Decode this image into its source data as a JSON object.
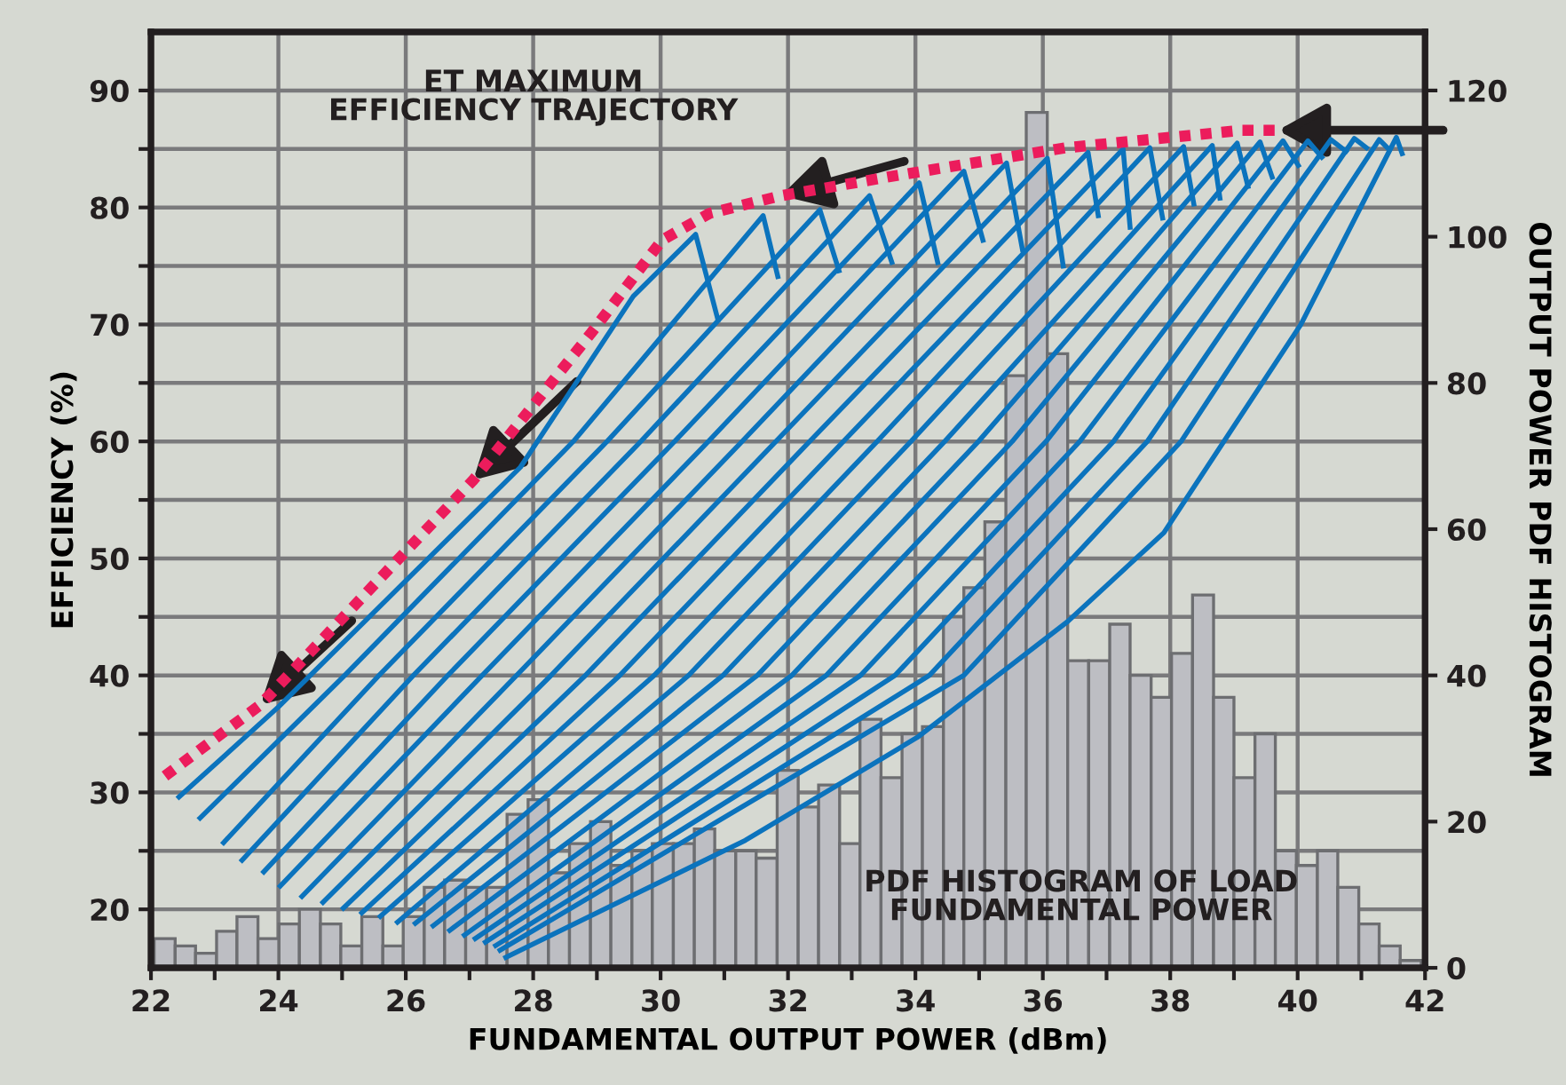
{
  "chart_data": {
    "type": "line",
    "xlabel": "FUNDAMENTAL OUTPUT POWER (dBm)",
    "ylabel": "EFFICIENCY (%)",
    "y2label": "OUTPUT POWER PDF HISTOGRAM",
    "xlim": [
      22,
      42
    ],
    "xticks": [
      22,
      {
        "value": 23,
        "label": null
      },
      24,
      {
        "value": 25,
        "label": null
      },
      26,
      {
        "value": 27,
        "label": null
      },
      28,
      {
        "value": 29,
        "label": null
      },
      30,
      {
        "value": 31,
        "label": null
      },
      32,
      {
        "value": 33,
        "label": null
      },
      34,
      {
        "value": 35,
        "label": null
      },
      36,
      {
        "value": 37,
        "label": null
      },
      38,
      {
        "value": 39,
        "label": null
      },
      40,
      {
        "value": 41,
        "label": null
      },
      42
    ],
    "ylim": [
      15,
      95
    ],
    "yticks": [
      20,
      {
        "value": 25,
        "label": null
      },
      30,
      {
        "value": 35,
        "label": null
      },
      40,
      {
        "value": 45,
        "label": null
      },
      50,
      {
        "value": 55,
        "label": null
      },
      60,
      {
        "value": 65,
        "label": null
      },
      70,
      {
        "value": 75,
        "label": null
      },
      80,
      {
        "value": 85,
        "label": null
      },
      90
    ],
    "y2lim": [
      0,
      128
    ],
    "y2ticks": [
      0,
      20,
      40,
      60,
      80,
      100,
      120
    ],
    "grid": true,
    "annotations": [
      "ET MAXIMUM\nEFFICIENCY TRAJECTORY",
      "PDF HISTOGRAM OF LOAD\nFUNDAMENTAL POWER"
    ],
    "series": [
      {
        "type": "histogram",
        "axis": "y2",
        "color": "#bdbec3",
        "bins": [
          22.05,
          22.38,
          22.7,
          23.03,
          23.35,
          23.68,
          24.01,
          24.33,
          24.66,
          24.98,
          25.31,
          25.64,
          25.96,
          26.29,
          26.61,
          26.94,
          27.27,
          27.59,
          27.92,
          28.24,
          28.57,
          28.9,
          29.22,
          29.55,
          29.87,
          30.2,
          30.53,
          30.85,
          31.18,
          31.5,
          31.83,
          32.16,
          32.48,
          32.81,
          33.13,
          33.46,
          33.79,
          34.11,
          34.44,
          34.76,
          35.09,
          35.42,
          35.74,
          36.07,
          36.39,
          36.72,
          37.05,
          37.37,
          37.7,
          38.02,
          38.35,
          38.68,
          39.0,
          39.33,
          39.65,
          39.98,
          40.31,
          40.63,
          40.96,
          41.28,
          41.61,
          41.94
        ],
        "values": [
          4,
          3,
          2,
          5,
          7,
          4,
          6,
          8,
          6,
          3,
          7,
          3,
          7,
          11,
          12,
          11,
          11,
          21,
          23,
          13,
          17,
          20,
          14,
          16,
          17,
          17,
          19,
          16,
          16,
          15,
          27,
          22,
          25,
          17,
          34,
          26,
          32,
          33,
          48,
          52,
          61,
          81,
          117,
          84,
          42,
          42,
          47,
          40,
          37,
          43,
          51,
          37,
          26,
          32,
          16,
          14,
          16,
          11,
          6,
          3,
          1
        ]
      },
      {
        "color": "#0b73bd",
        "x": [
          22.44,
          24.0,
          27.8,
          29.57,
          30.55,
          30.9
        ],
        "values": [
          29.6,
          37.3,
          57.8,
          72.4,
          77.7,
          70.4
        ]
      },
      {
        "color": "#0b73bd",
        "x": [
          22.77,
          25.04,
          28.63,
          31.61,
          31.84
        ],
        "values": [
          27.8,
          40,
          60,
          79.3,
          74.1
        ]
      },
      {
        "color": "#0b73bd",
        "x": [
          23.14,
          25.58,
          29.16,
          32.5,
          32.8
        ],
        "values": [
          25.7,
          40,
          60,
          79.8,
          74.6
        ]
      },
      {
        "color": "#0b73bd",
        "x": [
          23.43,
          26.12,
          29.69,
          33.28,
          33.63
        ],
        "values": [
          24.2,
          40,
          60,
          81.0,
          75.3
        ]
      },
      {
        "color": "#0b73bd",
        "x": [
          23.77,
          26.66,
          30.22,
          34.06,
          34.35
        ],
        "values": [
          23.2,
          40,
          60,
          82.1,
          75.3
        ]
      },
      {
        "color": "#0b73bd",
        "x": [
          24.03,
          27.2,
          30.75,
          34.76,
          35.06
        ],
        "values": [
          22.0,
          40,
          60,
          83.1,
          77.2
        ]
      },
      {
        "color": "#0b73bd",
        "x": [
          24.37,
          27.74,
          31.28,
          35.43,
          35.68
        ],
        "values": [
          21.1,
          40,
          60,
          83.8,
          76.4
        ]
      },
      {
        "color": "#0b73bd",
        "x": [
          24.7,
          28.28,
          31.81,
          36.07,
          36.32
        ],
        "values": [
          20.6,
          40,
          60,
          84.2,
          75.0
        ]
      },
      {
        "color": "#0b73bd",
        "x": [
          25.02,
          28.82,
          32.34,
          36.71,
          36.87
        ],
        "values": [
          20.1,
          40,
          60,
          84.7,
          79.3
        ]
      },
      {
        "color": "#0b73bd",
        "x": [
          25.31,
          29.36,
          32.87,
          37.26,
          37.37
        ],
        "values": [
          19.7,
          40,
          60,
          85.0,
          78.3
        ]
      },
      {
        "color": "#0b73bd",
        "x": [
          25.6,
          29.9,
          33.4,
          37.68,
          37.88
        ],
        "values": [
          19.4,
          40,
          60,
          85.1,
          79.1
        ]
      },
      {
        "color": "#0b73bd",
        "x": [
          25.87,
          30.44,
          33.93,
          38.21,
          38.37
        ],
        "values": [
          18.9,
          40,
          60,
          85.2,
          80.3
        ]
      },
      {
        "color": "#0b73bd",
        "x": [
          26.15,
          30.98,
          34.46,
          38.66,
          38.78
        ],
        "values": [
          18.8,
          40,
          60,
          85.3,
          80.8
        ]
      },
      {
        "color": "#0b73bd",
        "x": [
          26.43,
          31.52,
          34.99,
          39.05,
          39.22
        ],
        "values": [
          18.6,
          40,
          60,
          85.5,
          81.8
        ]
      },
      {
        "color": "#0b73bd",
        "x": [
          26.69,
          32.06,
          35.52,
          39.41,
          39.6
        ],
        "values": [
          18.2,
          40,
          60,
          85.6,
          82.6
        ]
      },
      {
        "color": "#0b73bd",
        "x": [
          26.92,
          32.6,
          36.05,
          39.77,
          40.01
        ],
        "values": [
          17.8,
          40,
          60,
          85.7,
          83.6
        ]
      },
      {
        "color": "#0b73bd",
        "x": [
          27.09,
          33.14,
          36.58,
          40.16,
          40.38
        ],
        "values": [
          17.5,
          40,
          60,
          85.7,
          84.3
        ]
      },
      {
        "color": "#0b73bd",
        "x": [
          27.25,
          33.68,
          37.11,
          40.52,
          40.76
        ],
        "values": [
          17.2,
          40,
          60,
          85.8,
          84.8
        ]
      },
      {
        "color": "#0b73bd",
        "x": [
          27.41,
          34.22,
          37.64,
          40.89,
          41.08
        ],
        "values": [
          16.9,
          40,
          60,
          85.9,
          85.1
        ]
      },
      {
        "color": "#0b73bd",
        "x": [
          27.48,
          34.76,
          38.17,
          41.28,
          41.41
        ],
        "values": [
          16.5,
          40,
          60,
          85.8,
          85.1
        ]
      },
      {
        "color": "#0b73bd",
        "x": [
          27.57,
          31.33,
          34.03,
          36.39,
          37.9,
          40.05,
          41.55,
          41.64
        ],
        "values": [
          15.9,
          25.9,
          34.7,
          44.6,
          52.2,
          70,
          86.0,
          84.6
        ]
      },
      {
        "color": "#ec1c5c",
        "line_style": "dotted",
        "x": [
          22.22,
          23.72,
          27.06,
          28.9,
          30.02,
          30.77,
          31.89,
          33.56,
          36.35,
          39.13,
          39.69
        ],
        "values": [
          31.4,
          37.5,
          56.7,
          69.2,
          77.2,
          79.5,
          81.0,
          82.6,
          85.1,
          86.6,
          86.6
        ]
      }
    ]
  }
}
